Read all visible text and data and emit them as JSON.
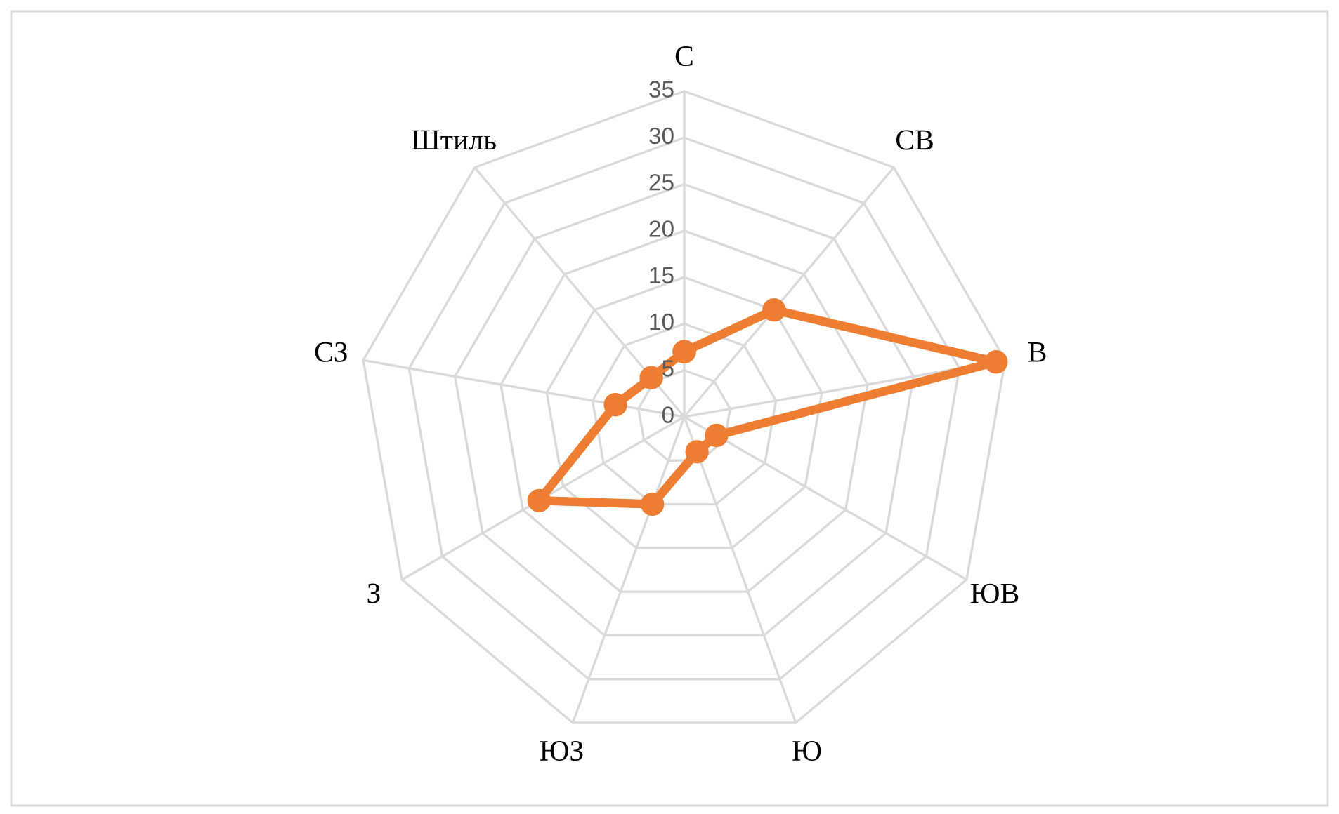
{
  "chart_data": {
    "type": "radar",
    "categories": [
      "С",
      "СВ",
      "В",
      "ЮВ",
      "Ю",
      "ЮЗ",
      "З",
      "СЗ",
      "Штиль"
    ],
    "series": [
      {
        "color": "#ed7d31",
        "values": [
          7,
          15,
          34,
          4,
          4,
          10,
          18,
          7.5,
          5.5
        ]
      }
    ],
    "ylim": [
      0,
      35
    ],
    "yticks": [
      0,
      5,
      10,
      15,
      20,
      25,
      30,
      35
    ],
    "grid": true,
    "marker": "circle",
    "line_style": "solid"
  }
}
